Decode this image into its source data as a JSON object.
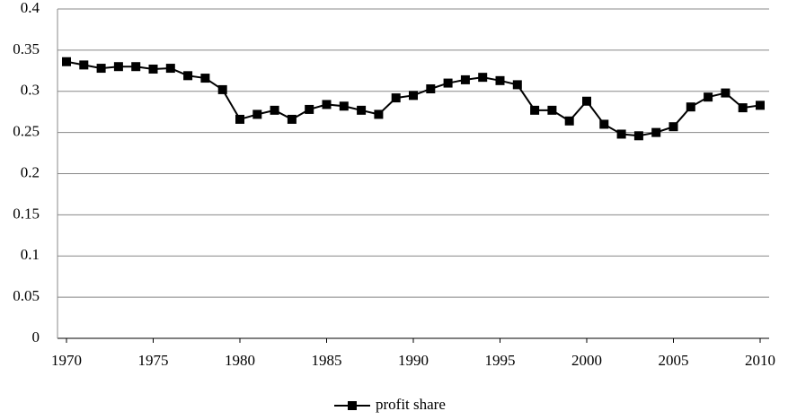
{
  "chart_data": {
    "type": "line",
    "x": [
      1970,
      1971,
      1972,
      1973,
      1974,
      1975,
      1976,
      1977,
      1978,
      1979,
      1980,
      1981,
      1982,
      1983,
      1984,
      1985,
      1986,
      1987,
      1988,
      1989,
      1990,
      1991,
      1992,
      1993,
      1994,
      1995,
      1996,
      1997,
      1998,
      1999,
      2000,
      2001,
      2002,
      2003,
      2004,
      2005,
      2006,
      2007,
      2008,
      2009,
      2010
    ],
    "series": [
      {
        "name": "profit share",
        "color": "#000000",
        "values": [
          0.336,
          0.332,
          0.328,
          0.33,
          0.33,
          0.327,
          0.328,
          0.319,
          0.316,
          0.302,
          0.266,
          0.272,
          0.277,
          0.266,
          0.278,
          0.284,
          0.282,
          0.277,
          0.272,
          0.292,
          0.295,
          0.303,
          0.31,
          0.314,
          0.317,
          0.313,
          0.308,
          0.277,
          0.277,
          0.264,
          0.288,
          0.26,
          0.248,
          0.246,
          0.25,
          0.257,
          0.281,
          0.293,
          0.298,
          0.28,
          0.283
        ]
      }
    ],
    "xlim": [
      1970,
      2010
    ],
    "xticks": [
      1970,
      1975,
      1980,
      1985,
      1990,
      1995,
      2000,
      2005,
      2010
    ],
    "ylim": [
      0,
      0.4
    ],
    "yticks": [
      0,
      0.05,
      0.1,
      0.15,
      0.2,
      0.25,
      0.3,
      0.35,
      0.4
    ],
    "grid": true,
    "legend": "bottom"
  }
}
